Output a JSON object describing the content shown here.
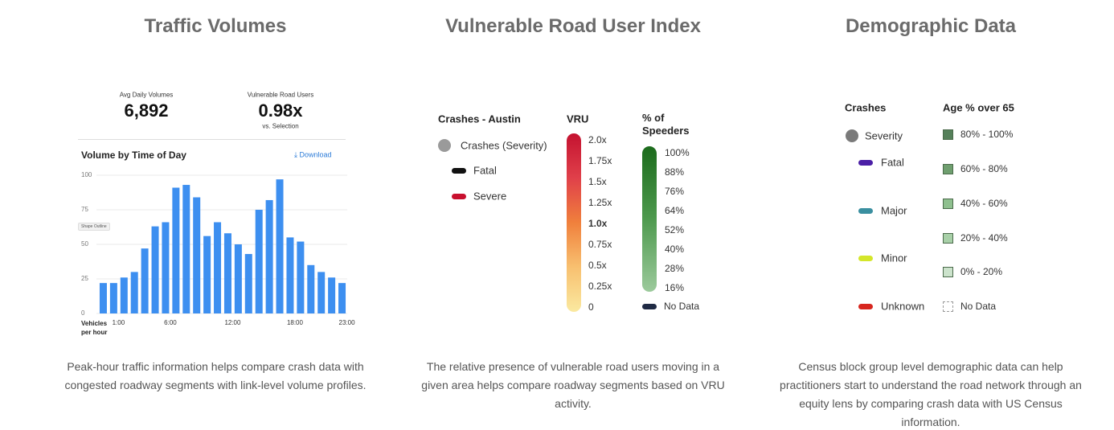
{
  "sections": [
    {
      "title": "Traffic Volumes",
      "description": "Peak-hour traffic information helps compare crash data with congested roadway segments with link-level volume profiles."
    },
    {
      "title": "Vulnerable Road User Index",
      "description": "The relative presence of vulnerable road users moving in a given area helps compare roadway segments based on VRU activity."
    },
    {
      "title": "Demographic Data",
      "description": "Census block group level demographic data can help practitioners start to understand the road network through an equity lens by comparing crash data with US Census information."
    }
  ],
  "traffic": {
    "stats": [
      {
        "label": "Avg Daily Volumes",
        "value": "6,892"
      },
      {
        "label": "Vulnerable Road Users",
        "value": "0.98x",
        "note": "vs. Selection"
      }
    ],
    "download": "Download",
    "tooltip": "Shape Outline"
  },
  "chart_data": {
    "type": "bar",
    "title": "Volume by Time of Day",
    "y_label": "Vehicles per hour",
    "categories": [
      null,
      "1:00",
      null,
      null,
      null,
      null,
      "6:00",
      null,
      null,
      null,
      null,
      null,
      "12:00",
      null,
      null,
      null,
      null,
      null,
      "18:00",
      null,
      null,
      null,
      null,
      "23:00"
    ],
    "values": [
      22,
      22,
      26,
      30,
      47,
      63,
      66,
      91,
      93,
      84,
      56,
      66,
      58,
      50,
      43,
      75,
      82,
      97,
      55,
      52,
      35,
      30,
      26,
      22
    ],
    "color": "#3d8ff0",
    "ylim": [
      0,
      100
    ],
    "yticks": [
      0,
      25,
      50,
      75,
      100
    ],
    "grid": true
  },
  "vru_legend": {
    "crashes_title": "Crashes - Austin",
    "crash_items": [
      {
        "label": "Crashes (Severity)",
        "color": "#9a9a9a",
        "shape": "circle"
      },
      {
        "label": "Fatal",
        "color": "#111111",
        "shape": "pill"
      },
      {
        "label": "Severe",
        "color": "#c8102e",
        "shape": "pill"
      }
    ],
    "vru_title": "VRU",
    "vru_labels": [
      "2.0x",
      "1.75x",
      "1.5x",
      "1.25x",
      "1.0x",
      "0.75x",
      "0.5x",
      "0.25x",
      "0"
    ],
    "speeders_title": "% of Speeders",
    "speeders_labels": [
      "100%",
      "88%",
      "76%",
      "64%",
      "52%",
      "40%",
      "28%",
      "16%"
    ],
    "no_data": "No Data",
    "no_data_color": "#1f2a44"
  },
  "demographic_legend": {
    "crashes_title": "Crashes",
    "crash_items": [
      {
        "label": "Severity",
        "color": "#7a7a7a",
        "shape": "circle"
      },
      {
        "label": "Fatal",
        "color": "#4b1fa6",
        "shape": "pill"
      },
      {
        "label": "Major",
        "color": "#3a8fa0",
        "shape": "pill"
      },
      {
        "label": "Minor",
        "color": "#d4e62a",
        "shape": "pill"
      },
      {
        "label": "Unknown",
        "color": "#d7261e",
        "shape": "pill"
      }
    ],
    "age_title": "Age % over 65",
    "age_items": [
      {
        "label": "80% - 100%",
        "color": "#55805a"
      },
      {
        "label": "60% - 80%",
        "color": "#6f9f6f"
      },
      {
        "label": "40% - 60%",
        "color": "#8fc08f"
      },
      {
        "label": "20% - 40%",
        "color": "#a8d0a8"
      },
      {
        "label": "0% - 20%",
        "color": "#cce3cc"
      }
    ],
    "no_data": "No Data"
  }
}
